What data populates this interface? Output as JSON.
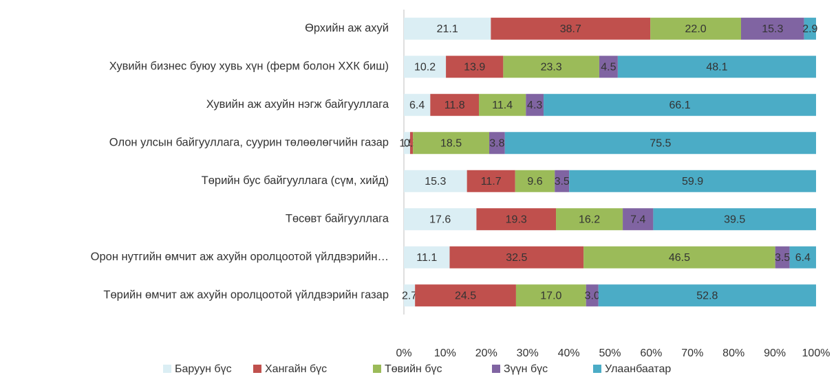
{
  "chart_data": {
    "type": "stacked_barh",
    "categories": [
      "Өрхийн аж ахуй",
      "Хувийн бизнес буюу хувь хүн (ферм болон ХХК биш)",
      "Хувийн аж ахуйн нэгж байгууллага",
      "Олон улсын байгууллага, суурин төлөөлөгчийн газар",
      "Төрийн бус байгууллага (сүм, хийд)",
      "Төсөвт байгууллага",
      "Орон нутгийн өмчит аж ахуйн оролцоотой үйлдвэрийн…",
      "Төрийн өмчит аж ахуйн оролцоотой үйлдвэрийн газар"
    ],
    "series": [
      {
        "name": "Баруун бүс",
        "color": "#dbeef4",
        "values": [
          21.1,
          10.2,
          6.4,
          1.5,
          15.3,
          17.6,
          11.1,
          2.7
        ],
        "value_labels": [
          "21.1",
          "10.2",
          "6.4",
          "1.5",
          "15.3",
          "17.6",
          "11.1",
          "2.7"
        ]
      },
      {
        "name": "Хангайн бүс",
        "color": "#c0504d",
        "values": [
          38.7,
          13.9,
          11.8,
          0.7,
          11.7,
          19.3,
          32.5,
          24.5
        ],
        "value_labels": [
          "38.7",
          "13.9",
          "11.8",
          "0.7",
          "11.7",
          "19.3",
          "32.5",
          "24.5"
        ]
      },
      {
        "name": "Төвийн бүс",
        "color": "#9bbb59",
        "values": [
          22.0,
          23.3,
          11.4,
          18.5,
          9.6,
          16.2,
          46.5,
          17.0
        ],
        "value_labels": [
          "22.0",
          "23.3",
          "11.4",
          "18.5",
          "9.6",
          "16.2",
          "46.5",
          "17.0"
        ]
      },
      {
        "name": "Зүүн бүс",
        "color": "#8064a2",
        "values": [
          15.3,
          4.5,
          4.3,
          3.8,
          3.5,
          7.4,
          3.5,
          3.0
        ],
        "value_labels": [
          "15.3",
          "4.5",
          "4.3",
          "3.8",
          "3.5",
          "7.4",
          "3.5",
          "3.0"
        ]
      },
      {
        "name": "Улаанбаатар",
        "color": "#4bacc6",
        "values": [
          2.9,
          48.1,
          66.1,
          75.5,
          59.9,
          39.5,
          6.4,
          52.8
        ],
        "value_labels": [
          "2.9",
          "48.1",
          "66.1",
          "75.5",
          "59.9",
          "39.5",
          "6.4",
          "52.8"
        ]
      }
    ],
    "xlim": [
      0,
      100
    ],
    "xticks": [
      {
        "value": 0,
        "label": "0%"
      },
      {
        "value": 10,
        "label": "10%"
      },
      {
        "value": 20,
        "label": "20%"
      },
      {
        "value": 30,
        "label": "30%"
      },
      {
        "value": 40,
        "label": "40%"
      },
      {
        "value": 50,
        "label": "50%"
      },
      {
        "value": 60,
        "label": "60%"
      },
      {
        "value": 70,
        "label": "70%"
      },
      {
        "value": 80,
        "label": "80%"
      },
      {
        "value": 90,
        "label": "90%"
      },
      {
        "value": 100,
        "label": "100%"
      }
    ],
    "legend": "bottom"
  }
}
